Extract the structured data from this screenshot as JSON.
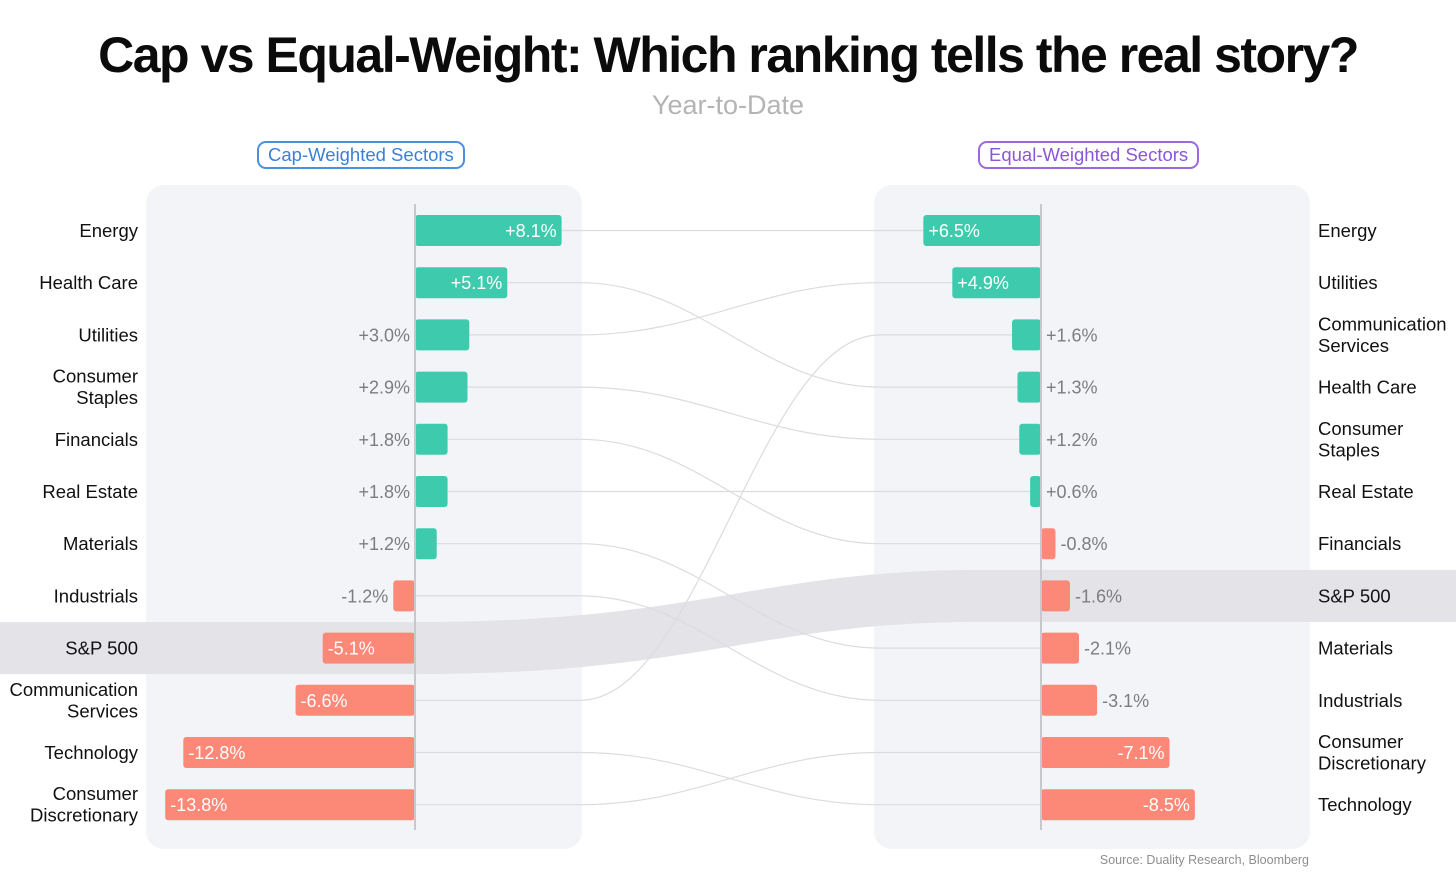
{
  "title": "Cap vs Equal-Weight: Which ranking tells the real story?",
  "subtitle": "Year-to-Date",
  "source": "Source: Duality Research, Bloomberg",
  "colors": {
    "positive": "#3ecbad",
    "negative": "#fc8878",
    "highlight_band": "#e3e3e8",
    "panel_bg": "#f3f4f8",
    "connector": "#dcdcdf",
    "left_panel_title": "#3a7fd8",
    "right_panel_title": "#8a57d6"
  },
  "chart_data": {
    "type": "bar",
    "highlight": "S&P 500",
    "panels": [
      {
        "title": "Cap-Weighted Sectors",
        "categories": [
          "Energy",
          "Health Care",
          "Utilities",
          "Consumer Staples",
          "Financials",
          "Real Estate",
          "Materials",
          "Industrials",
          "S&P 500",
          "Communication Services",
          "Technology",
          "Consumer Discretionary"
        ],
        "values": [
          8.1,
          5.1,
          3.0,
          2.9,
          1.8,
          1.8,
          1.2,
          -1.2,
          -5.1,
          -6.6,
          -12.8,
          -13.8
        ],
        "value_labels": [
          "+8.1%",
          "+5.1%",
          "+3.0%",
          "+2.9%",
          "+1.8%",
          "+1.8%",
          "+1.2%",
          "-1.2%",
          "-5.1%",
          "-6.6%",
          "-12.8%",
          "-13.8%"
        ]
      },
      {
        "title": "Equal-Weighted Sectors",
        "categories": [
          "Energy",
          "Utilities",
          "Communication Services",
          "Health Care",
          "Consumer Staples",
          "Real Estate",
          "Financials",
          "S&P 500",
          "Materials",
          "Industrials",
          "Consumer Discretionary",
          "Technology"
        ],
        "values": [
          6.5,
          4.9,
          1.6,
          1.3,
          1.2,
          0.6,
          -0.8,
          -1.6,
          -2.1,
          -3.1,
          -7.1,
          -8.5
        ],
        "value_labels": [
          "+6.5%",
          "+4.9%",
          "+1.6%",
          "+1.3%",
          "+1.2%",
          "+0.6%",
          "-0.8%",
          "-1.6%",
          "-2.1%",
          "-3.1%",
          "-7.1%",
          "-8.5%"
        ]
      }
    ]
  }
}
